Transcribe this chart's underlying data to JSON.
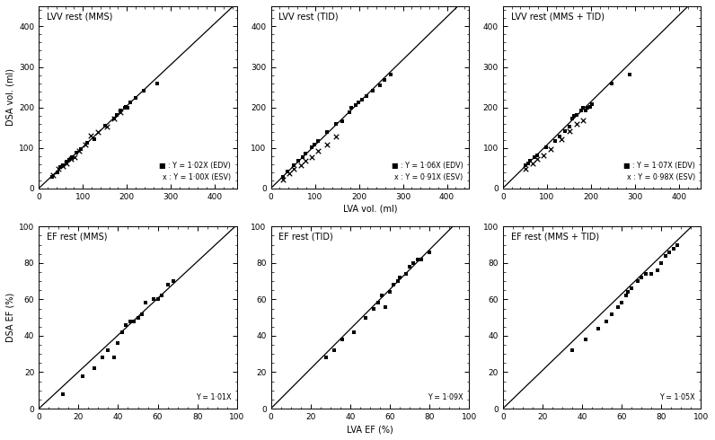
{
  "panels": [
    {
      "title": "LVV rest (MMS)",
      "xlim": [
        0,
        450
      ],
      "ylim": [
        0,
        450
      ],
      "xticks": [
        0,
        100,
        200,
        300,
        400
      ],
      "yticks": [
        0,
        100,
        200,
        300,
        400
      ],
      "slope": 1.02,
      "legend_lines": [
        "■ : Y = 1·02X (EDV)",
        "x : Y = 1·00X (ESV)"
      ],
      "edv_x": [
        30,
        42,
        48,
        55,
        62,
        68,
        75,
        85,
        95,
        110,
        125,
        150,
        170,
        178,
        185,
        195,
        198,
        202,
        208,
        220,
        238,
        268
      ],
      "edv_y": [
        28,
        40,
        52,
        58,
        65,
        70,
        78,
        88,
        98,
        112,
        122,
        155,
        172,
        182,
        192,
        198,
        202,
        198,
        212,
        224,
        242,
        260
      ],
      "esv_x": [
        32,
        45,
        55,
        62,
        72,
        82,
        92,
        105,
        118,
        135,
        155,
        170,
        185
      ],
      "esv_y": [
        32,
        48,
        55,
        62,
        72,
        78,
        92,
        108,
        130,
        138,
        152,
        172,
        188
      ],
      "xlabel": "",
      "ylabel": "DSA vol. (ml)"
    },
    {
      "title": "LVV rest (TID)",
      "xlim": [
        0,
        450
      ],
      "ylim": [
        0,
        450
      ],
      "xticks": [
        0,
        100,
        200,
        300,
        400
      ],
      "yticks": [
        0,
        100,
        200,
        300,
        400
      ],
      "slope": 1.06,
      "legend_lines": [
        "■ : Y = 1·06X (EDV)",
        "x : Y = 0·91X (ESV)"
      ],
      "edv_x": [
        28,
        38,
        52,
        62,
        72,
        78,
        92,
        98,
        108,
        128,
        148,
        162,
        178,
        182,
        192,
        198,
        208,
        218,
        232,
        248,
        258,
        272
      ],
      "edv_y": [
        28,
        42,
        58,
        68,
        78,
        85,
        102,
        108,
        118,
        138,
        158,
        165,
        188,
        198,
        205,
        212,
        218,
        228,
        242,
        255,
        268,
        282
      ],
      "esv_x": [
        28,
        42,
        52,
        68,
        78,
        92,
        108,
        128,
        148
      ],
      "esv_y": [
        22,
        38,
        48,
        58,
        68,
        78,
        92,
        108,
        128
      ],
      "xlabel": "LVA vol. (ml)",
      "ylabel": ""
    },
    {
      "title": "LVV rest (MMS + TID)",
      "xlim": [
        0,
        450
      ],
      "ylim": [
        0,
        450
      ],
      "xticks": [
        0,
        100,
        200,
        300,
        400
      ],
      "yticks": [
        0,
        100,
        200,
        300,
        400
      ],
      "slope": 1.07,
      "legend_lines": [
        "■ : Y = 1·07X (EDV)",
        "x : Y = 0·98X (ESV)"
      ],
      "edv_x": [
        52,
        58,
        62,
        72,
        78,
        98,
        118,
        128,
        142,
        152,
        158,
        162,
        168,
        178,
        182,
        188,
        192,
        198,
        202,
        248,
        288
      ],
      "edv_y": [
        58,
        62,
        68,
        78,
        82,
        102,
        118,
        128,
        142,
        152,
        172,
        178,
        182,
        192,
        198,
        192,
        198,
        202,
        208,
        258,
        282
      ],
      "esv_x": [
        52,
        68,
        78,
        92,
        108,
        132,
        152,
        168,
        182
      ],
      "esv_y": [
        48,
        62,
        72,
        82,
        98,
        122,
        142,
        158,
        168
      ],
      "xlabel": "",
      "ylabel": ""
    },
    {
      "title": "EF rest (MMS)",
      "xlim": [
        0,
        100
      ],
      "ylim": [
        0,
        100
      ],
      "xticks": [
        0,
        20,
        40,
        60,
        80,
        100
      ],
      "yticks": [
        0,
        20,
        40,
        60,
        80,
        100
      ],
      "slope": 1.01,
      "legend_lines": [
        "Y = 1·01X"
      ],
      "edv_x": [
        12,
        22,
        28,
        32,
        35,
        38,
        40,
        42,
        44,
        46,
        48,
        50,
        52,
        54,
        58,
        60,
        62,
        65,
        68
      ],
      "edv_y": [
        8,
        18,
        22,
        28,
        32,
        28,
        36,
        42,
        46,
        48,
        48,
        50,
        52,
        58,
        60,
        60,
        62,
        68,
        70
      ],
      "esv_x": [],
      "esv_y": [],
      "xlabel": "",
      "ylabel": "DSA EF (%)"
    },
    {
      "title": "EF rest (TID)",
      "xlim": [
        0,
        100
      ],
      "ylim": [
        0,
        100
      ],
      "xticks": [
        0,
        20,
        40,
        60,
        80,
        100
      ],
      "yticks": [
        0,
        20,
        40,
        60,
        80,
        100
      ],
      "slope": 1.09,
      "legend_lines": [
        "Y = 1·09X"
      ],
      "edv_x": [
        28,
        32,
        36,
        42,
        48,
        52,
        54,
        56,
        58,
        60,
        62,
        64,
        65,
        68,
        70,
        72,
        74,
        76,
        80
      ],
      "edv_y": [
        28,
        32,
        38,
        42,
        50,
        55,
        58,
        62,
        56,
        64,
        68,
        70,
        72,
        74,
        78,
        80,
        82,
        82,
        86
      ],
      "esv_x": [],
      "esv_y": [],
      "xlabel": "LVA EF (%)",
      "ylabel": ""
    },
    {
      "title": "EF rest (MMS + TID)",
      "xlim": [
        0,
        100
      ],
      "ylim": [
        0,
        100
      ],
      "xticks": [
        0,
        20,
        40,
        60,
        80,
        100
      ],
      "yticks": [
        0,
        20,
        40,
        60,
        80,
        100
      ],
      "slope": 1.05,
      "legend_lines": [
        "Y = 1·05X"
      ],
      "edv_x": [
        35,
        42,
        48,
        52,
        55,
        58,
        60,
        62,
        63,
        65,
        68,
        70,
        72,
        75,
        78,
        80,
        82,
        84,
        86,
        88
      ],
      "edv_y": [
        32,
        38,
        44,
        48,
        52,
        56,
        58,
        62,
        64,
        66,
        70,
        72,
        74,
        74,
        76,
        80,
        84,
        86,
        88,
        90
      ],
      "esv_x": [],
      "esv_y": [],
      "xlabel": "",
      "ylabel": ""
    }
  ],
  "background_color": "#ffffff",
  "marker_color": "black",
  "line_color": "black"
}
